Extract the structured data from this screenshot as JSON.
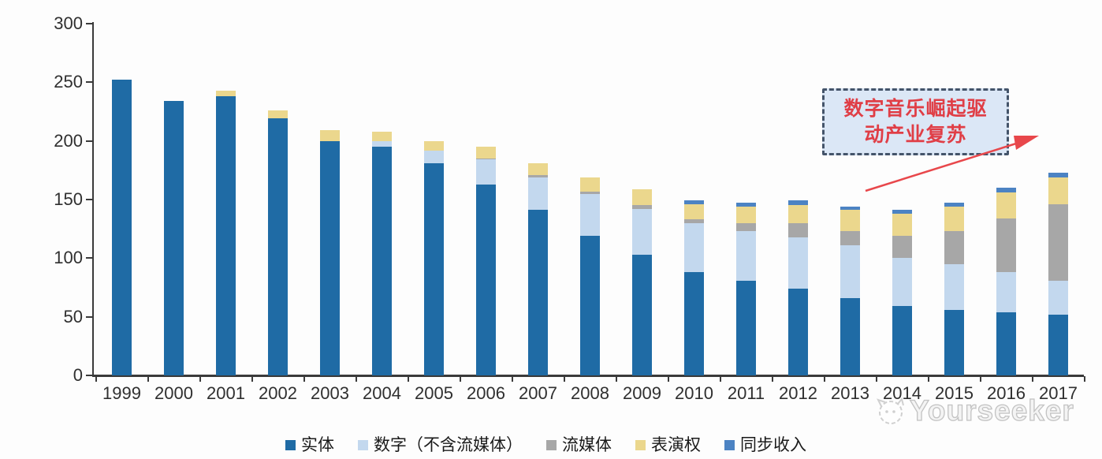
{
  "chart_data": {
    "type": "bar",
    "stacked": true,
    "title": "",
    "xlabel": "",
    "ylabel": "",
    "categories": [
      "1999",
      "2000",
      "2001",
      "2002",
      "2003",
      "2004",
      "2005",
      "2006",
      "2007",
      "2008",
      "2009",
      "2010",
      "2011",
      "2012",
      "2013",
      "2014",
      "2015",
      "2016",
      "2017"
    ],
    "series": [
      {
        "name": "实体",
        "color": "#1F6BA5",
        "values": [
          252,
          234,
          238,
          219,
          200,
          195,
          181,
          163,
          141,
          119,
          103,
          88,
          81,
          74,
          66,
          59,
          56,
          54,
          52
        ]
      },
      {
        "name": "数字（不含流媒体）",
        "color": "#C3D8EE",
        "values": [
          0,
          0,
          0,
          0,
          0,
          5,
          11,
          21,
          28,
          36,
          39,
          42,
          42,
          44,
          45,
          41,
          39,
          34,
          29
        ]
      },
      {
        "name": "流媒体",
        "color": "#A7A7A7",
        "values": [
          0,
          0,
          0,
          0,
          0,
          0,
          0,
          1,
          2,
          2,
          3,
          3,
          7,
          12,
          12,
          19,
          28,
          46,
          65
        ]
      },
      {
        "name": "表演权",
        "color": "#EBD78D",
        "values": [
          0,
          0,
          5,
          7,
          9,
          8,
          8,
          10,
          10,
          12,
          14,
          13,
          14,
          15,
          18,
          19,
          21,
          22,
          23
        ]
      },
      {
        "name": "同步收入",
        "color": "#4C83C3",
        "values": [
          0,
          0,
          0,
          0,
          0,
          0,
          0,
          0,
          0,
          0,
          0,
          3,
          3,
          4,
          3,
          3,
          3,
          4,
          4
        ]
      }
    ],
    "totals": [
      252,
      234,
      243,
      226,
      209,
      208,
      200,
      195,
      181,
      169,
      159,
      149,
      147,
      149,
      144,
      141,
      147,
      160,
      173
    ],
    "ylim": [
      0,
      300
    ],
    "ytick_step": 50,
    "yticks": [
      "0",
      "50",
      "100",
      "150",
      "200",
      "250",
      "300"
    ],
    "grid": false,
    "legend_position": "bottom"
  },
  "annotation": {
    "text": "数字音乐崛起驱动产业复苏",
    "lines": [
      "数字音乐崛起驱",
      "动产业复苏"
    ],
    "text_color": "#E03E46",
    "box_fill": "#DBE7F6",
    "border_color": "#44546A",
    "arrow_color": "#E8474B"
  },
  "watermark": {
    "text": "Yourseeker"
  }
}
